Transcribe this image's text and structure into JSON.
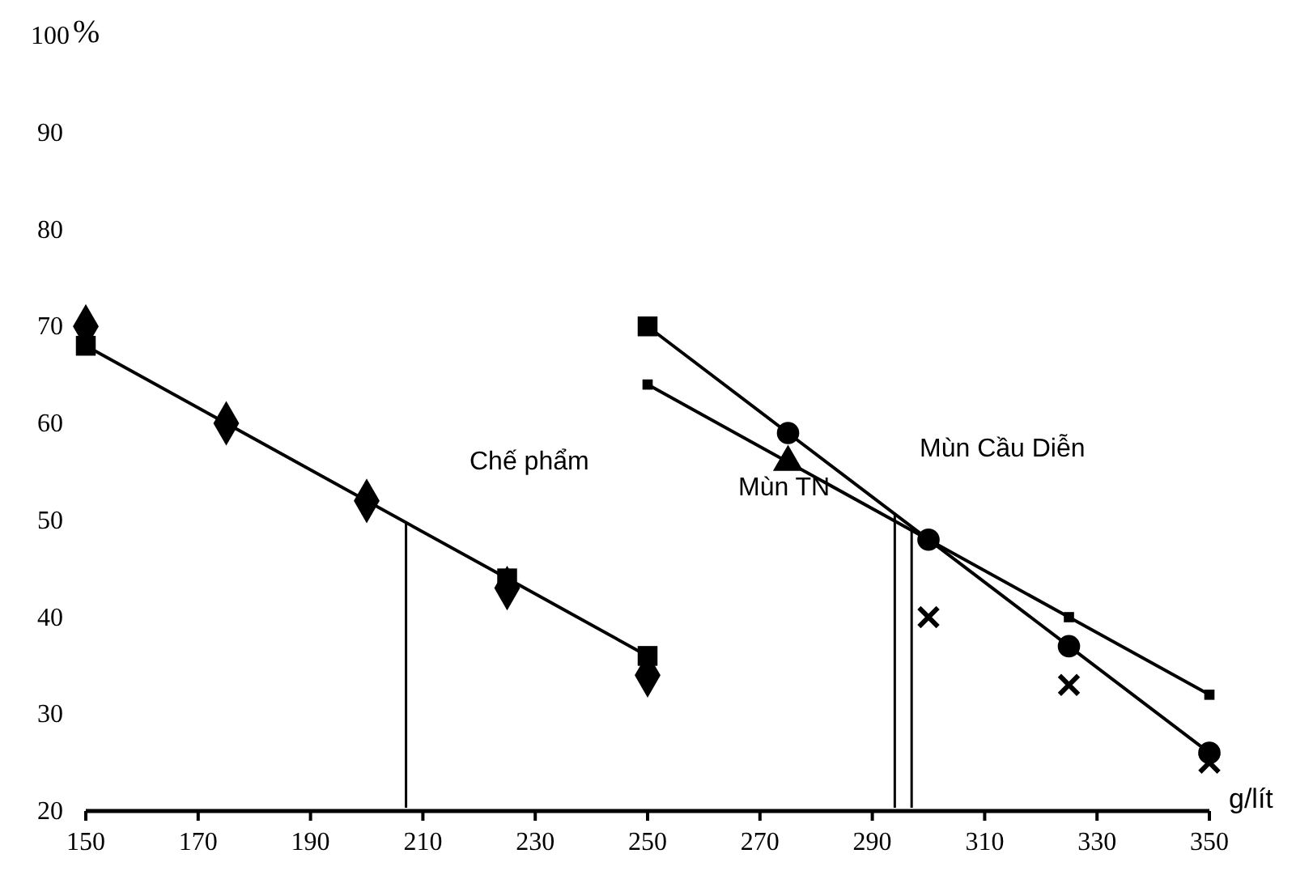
{
  "chart_data": {
    "type": "line",
    "xlabel": "g/lít",
    "ylabel": "%",
    "xlim": [
      150,
      350
    ],
    "xticks": [
      150,
      170,
      190,
      210,
      230,
      250,
      270,
      290,
      310,
      330,
      350
    ],
    "ylim": [
      20,
      100
    ],
    "yticks": [
      20,
      30,
      40,
      50,
      60,
      70,
      80,
      90,
      100
    ],
    "grid": false,
    "series": [
      {
        "type": "scatter",
        "marker": "diamond",
        "color": "#000000",
        "x": [
          150,
          175,
          200,
          225,
          250
        ],
        "values": [
          70,
          60,
          52,
          43,
          34
        ]
      },
      {
        "marker": "square",
        "color": "#000000",
        "x": [
          150,
          225,
          250
        ],
        "values": [
          68,
          44,
          36
        ]
      },
      {
        "marker": "none",
        "color": "#000000",
        "x": [
          250,
          275,
          300,
          325,
          350
        ],
        "values": [
          70,
          59,
          48,
          37,
          26
        ]
      },
      {
        "type": "scatter",
        "marker": "square",
        "color": "#000000",
        "x": [
          250
        ],
        "values": [
          70
        ]
      },
      {
        "type": "scatter",
        "marker": "circle",
        "color": "#000000",
        "x": [
          275,
          300,
          325,
          350
        ],
        "values": [
          59,
          48,
          37,
          26
        ]
      },
      {
        "marker": "none",
        "color": "#000000",
        "x": [
          250,
          275,
          300,
          325,
          350
        ],
        "values": [
          64,
          56,
          48,
          40,
          32
        ]
      },
      {
        "type": "scatter",
        "marker": "square",
        "color": "#000000",
        "x": [
          250,
          325,
          350
        ],
        "values": [
          64,
          40,
          32
        ]
      },
      {
        "type": "scatter",
        "marker": "triangle",
        "color": "#000000",
        "x": [
          275
        ],
        "values": [
          56
        ]
      },
      {
        "type": "scatter",
        "marker": "cross",
        "color": "#000000",
        "x": [
          300,
          325,
          350
        ],
        "values": [
          40,
          33,
          25
        ]
      }
    ],
    "ref_lines": [
      {
        "axis": "x",
        "value": 207
      },
      {
        "axis": "x",
        "value": 294
      },
      {
        "axis": "x",
        "value": 297
      }
    ],
    "annotations": [
      "Chế phẩm",
      "Mùn Cầu Diễn",
      "Mùn TN"
    ]
  }
}
